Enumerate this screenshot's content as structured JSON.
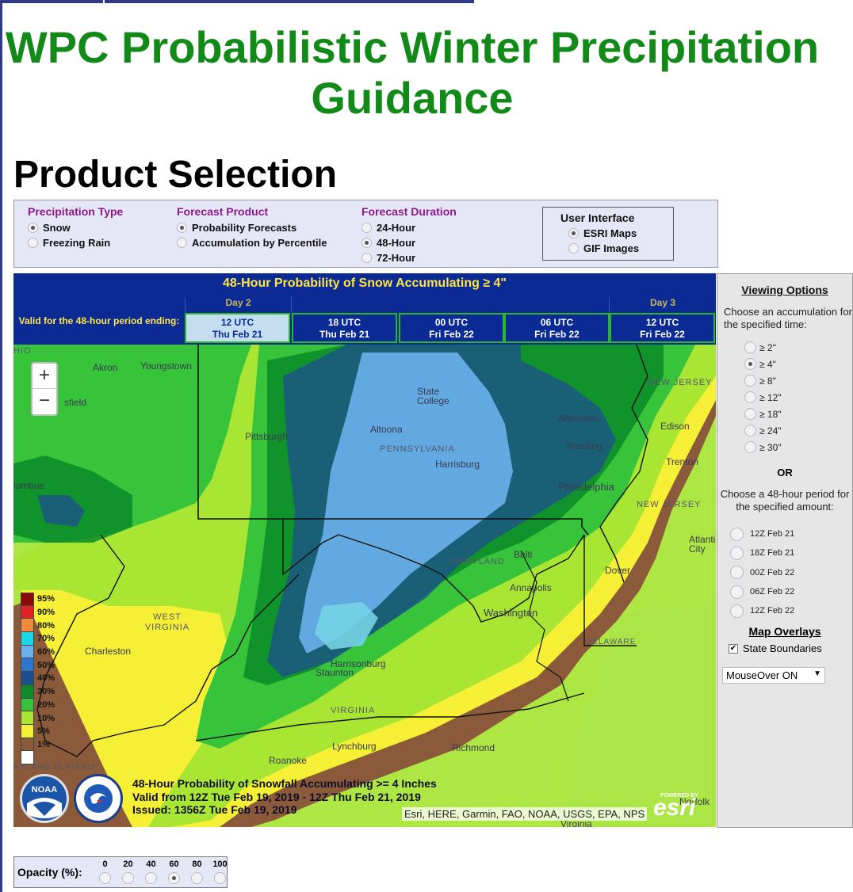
{
  "page": {
    "title": "WPC Probabilistic Winter Precipitation Guidance",
    "section": "Product Selection"
  },
  "selection": {
    "precip_type": {
      "label": "Precipitation Type",
      "options": [
        "Snow",
        "Freezing Rain"
      ],
      "selected": "Snow"
    },
    "forecast_product": {
      "label": "Forecast Product",
      "options": [
        "Probability Forecasts",
        "Accumulation by Percentile"
      ],
      "selected": "Probability Forecasts"
    },
    "forecast_duration": {
      "label": "Forecast Duration",
      "options": [
        "24-Hour",
        "48-Hour",
        "72-Hour"
      ],
      "selected": "48-Hour"
    },
    "user_interface": {
      "label": "User Interface",
      "options": [
        "ESRI Maps",
        "GIF Images"
      ],
      "selected": "ESRI Maps"
    }
  },
  "map_header": {
    "title": "48-Hour Probability of Snow Accumulating ≥ 4\"",
    "day2": "Day 2",
    "day3": "Day 3",
    "valid_label": "Valid for the 48-hour period ending:",
    "times": [
      {
        "utc": "12 UTC",
        "date": "Thu Feb 21",
        "active": true
      },
      {
        "utc": "18 UTC",
        "date": "Thu Feb 21",
        "active": false
      },
      {
        "utc": "00 UTC",
        "date": "Fri Feb 22",
        "active": false
      },
      {
        "utc": "06 UTC",
        "date": "Fri Feb 22",
        "active": false
      },
      {
        "utc": "12 UTC",
        "date": "Fri Feb 22",
        "active": false
      }
    ]
  },
  "map": {
    "zoom_in": "+",
    "zoom_out": "−",
    "places": [
      "Akron",
      "Youngstown",
      "sfield",
      "Pittsburgh",
      "State College",
      "Altoona",
      "PENNSYLVANIA",
      "Harrisburg",
      "Allentown",
      "Reading",
      "Philadelphia",
      "Edison",
      "Trenton",
      "NEW JERSEY",
      "NEW JERSEY",
      "lumbus",
      "MARYLAND",
      "Balti",
      "Annapolis",
      "Washington",
      "Dover",
      "DELAWARE",
      "WEST VIRGINIA",
      "Charleston",
      "Harrisonburg",
      "Staunton",
      "VIRGINIA",
      "Lynchburg",
      "Richmond",
      "Roanoke",
      "ERLAND PLATEAU",
      "HIO",
      "Atlantic City",
      "Norfolk",
      "Virginia"
    ],
    "legend": [
      {
        "label": "95%",
        "color": "#8e0b0b"
      },
      {
        "label": "90%",
        "color": "#e02222"
      },
      {
        "label": "80%",
        "color": "#f7893a"
      },
      {
        "label": "70%",
        "color": "#19d7e6"
      },
      {
        "label": "60%",
        "color": "#6ab1ee"
      },
      {
        "label": "50%",
        "color": "#2c76cf"
      },
      {
        "label": "40%",
        "color": "#1c4f8f"
      },
      {
        "label": "30%",
        "color": "#0b8b2a"
      },
      {
        "label": "20%",
        "color": "#37c43a"
      },
      {
        "label": "10%",
        "color": "#a8e633"
      },
      {
        "label": "5%",
        "color": "#f5ef36"
      },
      {
        "label": "1%",
        "color": "#8a5a3a"
      },
      {
        "label": "",
        "color": "#ffffff"
      }
    ],
    "caption": [
      "48-Hour Probability of Snowfall Accumulating >= 4 Inches",
      "Valid from 12Z Tue Feb 19, 2019 - 12Z Thu Feb 21, 2019",
      "Issued: 1356Z Tue Feb 19, 2019"
    ],
    "noaa_logo": "NOAA",
    "attribution": "Esri, HERE, Garmin, FAO, NOAA, USGS, EPA, NPS",
    "esri_powered": "POWERED BY",
    "esri": "esri"
  },
  "viewing_options": {
    "title": "Viewing Options",
    "accum_prompt": "Choose an accumulation for the specified time:",
    "accum_options": [
      "≥ 2\"",
      "≥ 4\"",
      "≥ 8\"",
      "≥ 12\"",
      "≥ 18\"",
      "≥ 24\"",
      "≥ 30\""
    ],
    "accum_selected": "≥ 4\"",
    "or": "OR",
    "period_prompt": "Choose a 48-hour period for the specified amount:",
    "periods": [
      "12Z Feb 21",
      "18Z Feb 21",
      "00Z Feb 22",
      "06Z Feb 22",
      "12Z Feb 22"
    ],
    "overlays_title": "Map Overlays",
    "state_boundaries": "State Boundaries",
    "check_mark": "✔",
    "mouseover": "MouseOver ON",
    "dropdown_arrow": "▼"
  },
  "opacity": {
    "label": "Opacity (%):",
    "values": [
      "0",
      "20",
      "40",
      "60",
      "80",
      "100"
    ],
    "selected": "60"
  }
}
